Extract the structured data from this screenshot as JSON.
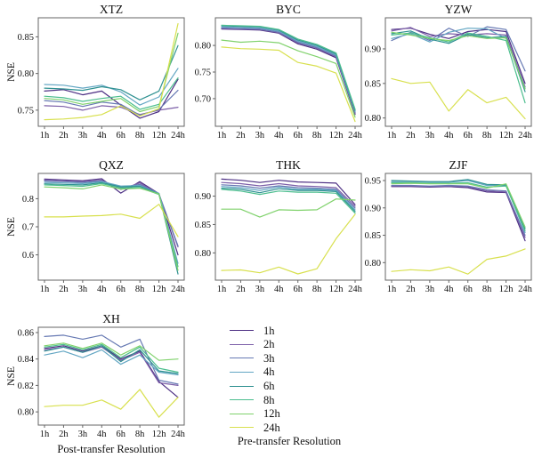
{
  "labels": {
    "ylabel": "NSE",
    "xlabel": "Post-transfer Resolution"
  },
  "categories": [
    "1h",
    "2h",
    "3h",
    "4h",
    "6h",
    "8h",
    "12h",
    "24h"
  ],
  "legend": {
    "title": "Pre-transfer Resolution",
    "entries": [
      {
        "label": "1h",
        "color": "#4c2e83"
      },
      {
        "label": "2h",
        "color": "#7c5fa8"
      },
      {
        "label": "3h",
        "color": "#6679b3"
      },
      {
        "label": "4h",
        "color": "#63a6c3"
      },
      {
        "label": "6h",
        "color": "#2f9191"
      },
      {
        "label": "8h",
        "color": "#4cbe8e"
      },
      {
        "label": "12h",
        "color": "#80d26c"
      },
      {
        "label": "24h",
        "color": "#d8e04e"
      }
    ]
  },
  "chart_data": [
    {
      "type": "line",
      "name": "XTZ",
      "title": "XTZ",
      "show_ylabel": true,
      "show_xlabel": false,
      "ylim": [
        0.728,
        0.876
      ],
      "yticks": [
        {
          "v": 0.75,
          "label": "0.75"
        },
        {
          "v": 0.8,
          "label": "0.80"
        },
        {
          "v": 0.85,
          "label": "0.85"
        }
      ],
      "series": [
        {
          "name": "1h",
          "values": [
            0.776,
            0.778,
            0.771,
            0.776,
            0.757,
            0.739,
            0.748,
            0.792
          ]
        },
        {
          "name": "2h",
          "values": [
            0.756,
            0.755,
            0.75,
            0.756,
            0.754,
            0.744,
            0.75,
            0.754
          ]
        },
        {
          "name": "3h",
          "values": [
            0.763,
            0.761,
            0.755,
            0.761,
            0.758,
            0.743,
            0.751,
            0.777
          ]
        },
        {
          "name": "4h",
          "values": [
            0.785,
            0.784,
            0.78,
            0.784,
            0.775,
            0.757,
            0.768,
            0.807
          ]
        },
        {
          "name": "6h",
          "values": [
            0.78,
            0.779,
            0.777,
            0.782,
            0.778,
            0.764,
            0.776,
            0.838
          ]
        },
        {
          "name": "8h",
          "values": [
            0.769,
            0.767,
            0.762,
            0.766,
            0.769,
            0.751,
            0.758,
            0.794
          ]
        },
        {
          "name": "12h",
          "values": [
            0.766,
            0.764,
            0.758,
            0.762,
            0.766,
            0.748,
            0.755,
            0.855
          ]
        },
        {
          "name": "24h",
          "values": [
            0.737,
            0.738,
            0.74,
            0.744,
            0.756,
            0.742,
            0.752,
            0.868
          ]
        }
      ]
    },
    {
      "type": "line",
      "name": "BYC",
      "title": "BYC",
      "show_ylabel": false,
      "show_xlabel": false,
      "ylim": [
        0.648,
        0.852
      ],
      "yticks": [
        {
          "v": 0.7,
          "label": "0.70"
        },
        {
          "v": 0.75,
          "label": "0.75"
        },
        {
          "v": 0.8,
          "label": "0.80"
        }
      ],
      "series": [
        {
          "name": "1h",
          "values": [
            0.831,
            0.83,
            0.829,
            0.823,
            0.803,
            0.793,
            0.777,
            0.67
          ]
        },
        {
          "name": "2h",
          "values": [
            0.832,
            0.831,
            0.83,
            0.824,
            0.805,
            0.795,
            0.779,
            0.672
          ]
        },
        {
          "name": "3h",
          "values": [
            0.833,
            0.832,
            0.831,
            0.825,
            0.806,
            0.796,
            0.78,
            0.674
          ]
        },
        {
          "name": "4h",
          "values": [
            0.835,
            0.834,
            0.833,
            0.827,
            0.808,
            0.798,
            0.782,
            0.676
          ]
        },
        {
          "name": "6h",
          "values": [
            0.837,
            0.836,
            0.835,
            0.829,
            0.81,
            0.8,
            0.784,
            0.678
          ]
        },
        {
          "name": "8h",
          "values": [
            0.838,
            0.837,
            0.836,
            0.83,
            0.812,
            0.802,
            0.786,
            0.68
          ]
        },
        {
          "name": "12h",
          "values": [
            0.81,
            0.806,
            0.808,
            0.805,
            0.79,
            0.779,
            0.766,
            0.665
          ]
        },
        {
          "name": "24h",
          "values": [
            0.797,
            0.794,
            0.793,
            0.791,
            0.768,
            0.761,
            0.748,
            0.657
          ]
        }
      ]
    },
    {
      "type": "line",
      "name": "YZW",
      "title": "YZW",
      "show_ylabel": false,
      "show_xlabel": false,
      "ylim": [
        0.788,
        0.945
      ],
      "yticks": [
        {
          "v": 0.8,
          "label": "0.80"
        },
        {
          "v": 0.85,
          "label": "0.85"
        },
        {
          "v": 0.9,
          "label": "0.90"
        }
      ],
      "series": [
        {
          "name": "1h",
          "values": [
            0.928,
            0.93,
            0.921,
            0.915,
            0.925,
            0.928,
            0.925,
            0.85
          ]
        },
        {
          "name": "2h",
          "values": [
            0.926,
            0.931,
            0.918,
            0.922,
            0.92,
            0.922,
            0.92,
            0.845
          ]
        },
        {
          "name": "3h",
          "values": [
            0.912,
            0.924,
            0.912,
            0.93,
            0.918,
            0.932,
            0.928,
            0.868
          ]
        },
        {
          "name": "4h",
          "values": [
            0.915,
            0.922,
            0.91,
            0.924,
            0.93,
            0.929,
            0.915,
            0.843
          ]
        },
        {
          "name": "6h",
          "values": [
            0.922,
            0.926,
            0.914,
            0.908,
            0.921,
            0.916,
            0.918,
            0.838
          ]
        },
        {
          "name": "8h",
          "values": [
            0.92,
            0.923,
            0.916,
            0.91,
            0.923,
            0.918,
            0.912,
            0.822
          ]
        },
        {
          "name": "12h",
          "values": [
            0.924,
            0.92,
            0.915,
            0.912,
            0.919,
            0.915,
            0.916,
            0.842
          ]
        },
        {
          "name": "24h",
          "values": [
            0.857,
            0.85,
            0.852,
            0.81,
            0.841,
            0.822,
            0.83,
            0.799
          ]
        }
      ]
    },
    {
      "type": "line",
      "name": "QXZ",
      "title": "QXZ",
      "show_ylabel": true,
      "show_xlabel": false,
      "ylim": [
        0.51,
        0.89
      ],
      "yticks": [
        {
          "v": 0.6,
          "label": "0.6"
        },
        {
          "v": 0.7,
          "label": "0.7"
        },
        {
          "v": 0.8,
          "label": "0.8"
        }
      ],
      "series": [
        {
          "name": "1h",
          "values": [
            0.87,
            0.867,
            0.864,
            0.871,
            0.82,
            0.861,
            0.818,
            0.6
          ]
        },
        {
          "name": "2h",
          "values": [
            0.866,
            0.863,
            0.861,
            0.866,
            0.833,
            0.856,
            0.816,
            0.628
          ]
        },
        {
          "name": "3h",
          "values": [
            0.863,
            0.861,
            0.858,
            0.863,
            0.84,
            0.851,
            0.817,
            0.632
          ]
        },
        {
          "name": "4h",
          "values": [
            0.858,
            0.856,
            0.854,
            0.861,
            0.845,
            0.847,
            0.819,
            0.57
          ]
        },
        {
          "name": "6h",
          "values": [
            0.853,
            0.851,
            0.849,
            0.857,
            0.842,
            0.844,
            0.817,
            0.532
          ]
        },
        {
          "name": "8h",
          "values": [
            0.849,
            0.847,
            0.844,
            0.854,
            0.838,
            0.84,
            0.815,
            0.558
          ]
        },
        {
          "name": "12h",
          "values": [
            0.842,
            0.839,
            0.835,
            0.849,
            0.834,
            0.837,
            0.817,
            0.545
          ]
        },
        {
          "name": "24h",
          "values": [
            0.735,
            0.735,
            0.738,
            0.74,
            0.745,
            0.73,
            0.78,
            0.665
          ]
        }
      ]
    },
    {
      "type": "line",
      "name": "THK",
      "title": "THK",
      "show_ylabel": false,
      "show_xlabel": false,
      "ylim": [
        0.752,
        0.94
      ],
      "yticks": [
        {
          "v": 0.8,
          "label": "0.80"
        },
        {
          "v": 0.85,
          "label": "0.85"
        },
        {
          "v": 0.9,
          "label": "0.90"
        }
      ],
      "series": [
        {
          "name": "1h",
          "values": [
            0.93,
            0.928,
            0.924,
            0.928,
            0.925,
            0.924,
            0.923,
            0.885
          ]
        },
        {
          "name": "2h",
          "values": [
            0.924,
            0.922,
            0.918,
            0.922,
            0.918,
            0.917,
            0.915,
            0.882
          ]
        },
        {
          "name": "3h",
          "values": [
            0.92,
            0.918,
            0.914,
            0.918,
            0.915,
            0.914,
            0.912,
            0.879
          ]
        },
        {
          "name": "4h",
          "values": [
            0.917,
            0.915,
            0.91,
            0.916,
            0.912,
            0.912,
            0.91,
            0.876
          ]
        },
        {
          "name": "6h",
          "values": [
            0.914,
            0.912,
            0.906,
            0.913,
            0.91,
            0.91,
            0.908,
            0.873
          ]
        },
        {
          "name": "8h",
          "values": [
            0.912,
            0.909,
            0.903,
            0.909,
            0.907,
            0.907,
            0.905,
            0.87
          ]
        },
        {
          "name": "12h",
          "values": [
            0.877,
            0.877,
            0.863,
            0.876,
            0.875,
            0.876,
            0.895,
            0.893
          ]
        },
        {
          "name": "24h",
          "values": [
            0.769,
            0.77,
            0.765,
            0.775,
            0.763,
            0.772,
            0.825,
            0.868
          ]
        }
      ]
    },
    {
      "type": "line",
      "name": "ZJF",
      "title": "ZJF",
      "show_ylabel": false,
      "show_xlabel": false,
      "ylim": [
        0.768,
        0.963
      ],
      "yticks": [
        {
          "v": 0.8,
          "label": "0.80"
        },
        {
          "v": 0.85,
          "label": "0.85"
        },
        {
          "v": 0.9,
          "label": "0.90"
        },
        {
          "v": 0.95,
          "label": "0.95"
        }
      ],
      "series": [
        {
          "name": "1h",
          "values": [
            0.939,
            0.939,
            0.938,
            0.939,
            0.937,
            0.929,
            0.928,
            0.84
          ]
        },
        {
          "name": "2h",
          "values": [
            0.94,
            0.94,
            0.939,
            0.94,
            0.939,
            0.931,
            0.929,
            0.846
          ]
        },
        {
          "name": "3h",
          "values": [
            0.941,
            0.941,
            0.94,
            0.941,
            0.94,
            0.933,
            0.931,
            0.85
          ]
        },
        {
          "name": "4h",
          "values": [
            0.948,
            0.948,
            0.947,
            0.947,
            0.95,
            0.941,
            0.941,
            0.855
          ]
        },
        {
          "name": "6h",
          "values": [
            0.95,
            0.949,
            0.948,
            0.948,
            0.952,
            0.943,
            0.942,
            0.862
          ]
        },
        {
          "name": "8h",
          "values": [
            0.946,
            0.946,
            0.945,
            0.945,
            0.946,
            0.938,
            0.94,
            0.858
          ]
        },
        {
          "name": "12h",
          "values": [
            0.944,
            0.945,
            0.944,
            0.944,
            0.944,
            0.936,
            0.944,
            0.865
          ]
        },
        {
          "name": "24h",
          "values": [
            0.784,
            0.787,
            0.785,
            0.792,
            0.779,
            0.806,
            0.812,
            0.825
          ]
        }
      ]
    },
    {
      "type": "line",
      "name": "XH",
      "title": "XH",
      "show_ylabel": true,
      "show_xlabel": true,
      "ylim": [
        0.79,
        0.864
      ],
      "yticks": [
        {
          "v": 0.8,
          "label": "0.80"
        },
        {
          "v": 0.82,
          "label": "0.82"
        },
        {
          "v": 0.84,
          "label": "0.84"
        },
        {
          "v": 0.86,
          "label": "0.86"
        }
      ],
      "series": [
        {
          "name": "1h",
          "values": [
            0.848,
            0.85,
            0.846,
            0.85,
            0.84,
            0.846,
            0.823,
            0.811
          ]
        },
        {
          "name": "2h",
          "values": [
            0.847,
            0.849,
            0.845,
            0.849,
            0.839,
            0.845,
            0.822,
            0.82
          ]
        },
        {
          "name": "3h",
          "values": [
            0.857,
            0.858,
            0.855,
            0.858,
            0.849,
            0.855,
            0.824,
            0.821
          ]
        },
        {
          "name": "4h",
          "values": [
            0.843,
            0.846,
            0.841,
            0.847,
            0.836,
            0.843,
            0.83,
            0.828
          ]
        },
        {
          "name": "6h",
          "values": [
            0.846,
            0.849,
            0.845,
            0.85,
            0.838,
            0.847,
            0.831,
            0.829
          ]
        },
        {
          "name": "8h",
          "values": [
            0.849,
            0.851,
            0.847,
            0.851,
            0.841,
            0.849,
            0.833,
            0.83
          ]
        },
        {
          "name": "12h",
          "values": [
            0.85,
            0.852,
            0.848,
            0.852,
            0.843,
            0.85,
            0.839,
            0.84
          ]
        },
        {
          "name": "24h",
          "values": [
            0.804,
            0.805,
            0.805,
            0.809,
            0.802,
            0.817,
            0.796,
            0.811
          ]
        }
      ]
    }
  ]
}
